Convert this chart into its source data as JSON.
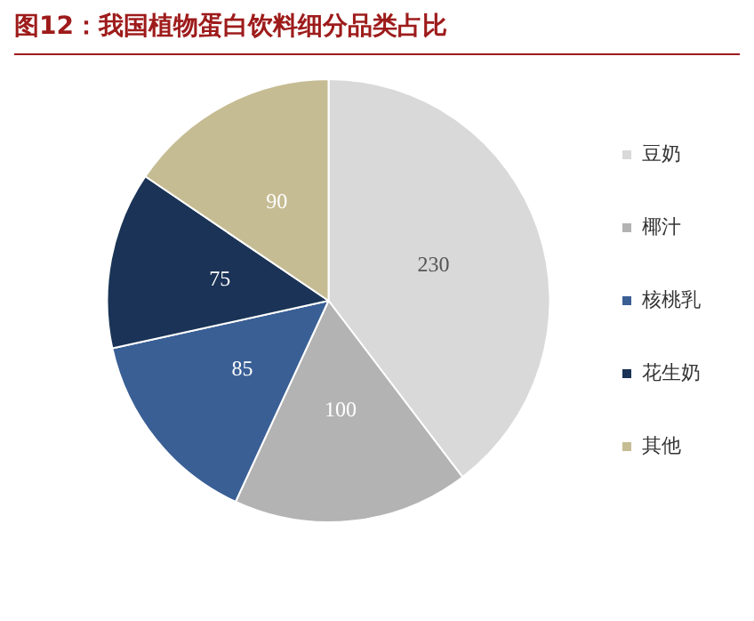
{
  "chart_data": {
    "type": "pie",
    "title": "图12：我国植物蛋白饮料细分品类占比",
    "categories": [
      "豆奶",
      "椰汁",
      "核桃乳",
      "花生奶",
      "其他"
    ],
    "values": [
      230,
      100,
      85,
      75,
      90
    ],
    "colors": [
      "#d9d9d9",
      "#b3b3b3",
      "#3a5f95",
      "#1a3356",
      "#c6bc93"
    ],
    "data_labels": true,
    "legend": "right"
  }
}
